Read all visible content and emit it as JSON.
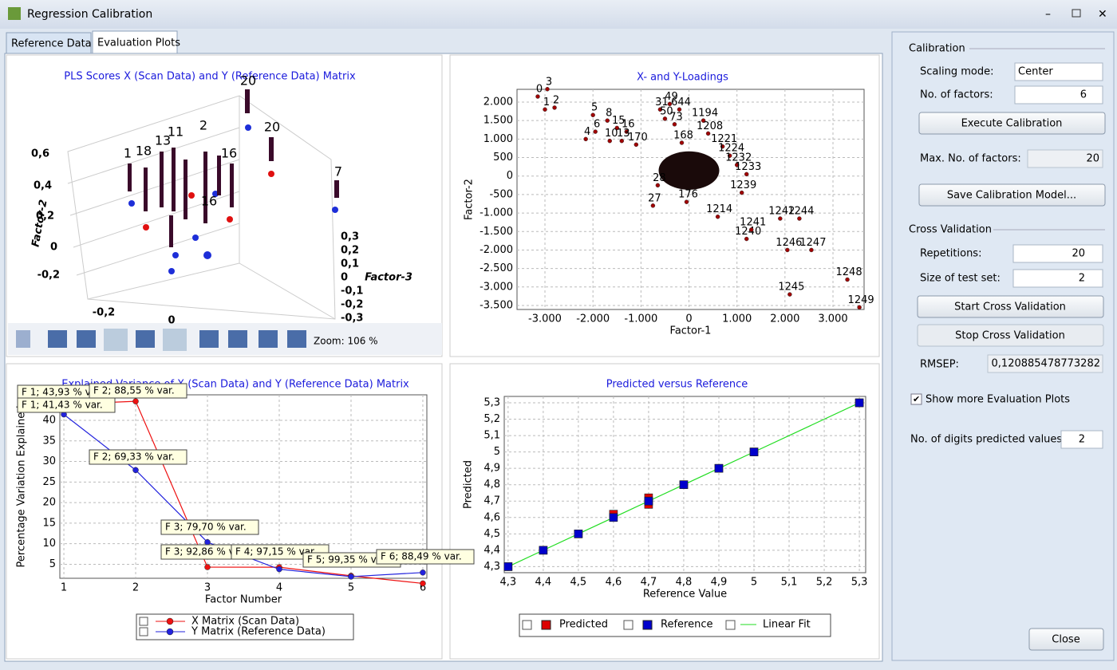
{
  "window": {
    "title": "Regression Calibration"
  },
  "tabs": [
    "Reference Data",
    "Evaluation Plots"
  ],
  "scores": {
    "title": "PLS Scores X (Scan Data) and Y (Reference Data) Matrix",
    "y_axis_label": "Factor-2",
    "z_axis_label": "Factor-3",
    "y_ticks": [
      "0,6",
      "0,4",
      "0,2",
      "0",
      "-0,2"
    ],
    "z_ticks": [
      "0,3",
      "0,2",
      "0,1",
      "0",
      "-0,1",
      "-0,2",
      "-0,3"
    ],
    "x_ticks": [
      "-0,2",
      "0"
    ],
    "point_labels": [
      "20",
      "20",
      "7",
      "11",
      "2",
      "1",
      "18",
      "16",
      "16",
      "13"
    ],
    "zoom": "Zoom: 106 %"
  },
  "loadings": {
    "type": "scatter",
    "title": "X- and Y-Loadings",
    "xlabel": "Factor-1",
    "ylabel": "Factor-2",
    "xlim": [
      -3582,
      3648
    ],
    "ylim": [
      -3608,
      2345
    ],
    "xticks": [
      {
        "value": -3000,
        "label": "-3.000"
      },
      {
        "value": -2000,
        "label": "-2.000"
      },
      {
        "value": -1000,
        "label": "-1.000"
      },
      0,
      {
        "value": 1000,
        "label": "1.000"
      },
      {
        "value": 2000,
        "label": "2.000"
      },
      {
        "value": 3000,
        "label": "3.000"
      }
    ],
    "yticks": [
      {
        "value": 2000,
        "label": "2.000"
      },
      {
        "value": 1500,
        "label": "1.500"
      },
      {
        "value": 1000,
        "label": "1.000"
      },
      500,
      0,
      -500,
      {
        "value": -1000,
        "label": "-1.000"
      },
      {
        "value": -1500,
        "label": "-1.500"
      },
      {
        "value": -2000,
        "label": "-2.000"
      },
      {
        "value": -2500,
        "label": "-2.500"
      },
      {
        "value": -3000,
        "label": "-3.000"
      },
      {
        "value": -3500,
        "label": "-3.500"
      }
    ],
    "labels": [
      "0",
      "3",
      "1",
      "2",
      "5",
      "6",
      "8",
      "4",
      "15",
      "16",
      "10",
      "13",
      "170",
      "49",
      "31",
      "644",
      "50",
      "73",
      "1194",
      "1208",
      "168",
      "1221",
      "1224",
      "1232",
      "1233",
      "1239",
      "176",
      "27",
      "28",
      "1214",
      "1240",
      "1241",
      "1242",
      "1244",
      "1246",
      "1247",
      "1245",
      "1248",
      "1249"
    ],
    "x": [
      -3150,
      -2950,
      -3000,
      -2800,
      -2000,
      -1950,
      -1700,
      -2150,
      -1500,
      -1300,
      -1650,
      -1400,
      -1100,
      -400,
      -600,
      -200,
      -500,
      -300,
      300,
      400,
      -150,
      700,
      850,
      1000,
      1200,
      1100,
      -50,
      -750,
      -650,
      600,
      1200,
      1300,
      1900,
      2300,
      2050,
      2550,
      2100,
      3300,
      3550
    ],
    "y": [
      2150,
      2350,
      1800,
      1850,
      1650,
      1200,
      1500,
      1000,
      1300,
      1200,
      950,
      950,
      850,
      1950,
      1800,
      1800,
      1550,
      1400,
      1500,
      1150,
      900,
      800,
      550,
      300,
      50,
      -450,
      -700,
      -800,
      -250,
      -1100,
      -1700,
      -1450,
      -1150,
      -1150,
      -2000,
      -2000,
      -3200,
      -2800,
      -3550
    ],
    "color": "#a00000"
  },
  "explained": {
    "type": "line",
    "title": "Explained Variance of X (Scan Data) and Y (Reference Data) Matrix",
    "xlabel": "Factor Number",
    "ylabel": "Percentage Variation Explained",
    "x": [
      1,
      2,
      3,
      4,
      5,
      6
    ],
    "xlim": [
      0.944,
      6.056
    ],
    "ylim": [
      1.6,
      46.2
    ],
    "xticks": [
      1,
      2,
      3,
      4,
      5,
      6
    ],
    "yticks": [
      5,
      10,
      15,
      20,
      25,
      30,
      35,
      40
    ],
    "series": [
      {
        "name": "X Matrix (Scan Data)",
        "color": "#ee1111",
        "values": [
          43.93,
          44.62,
          4.31,
          4.29,
          2.2,
          0.35
        ]
      },
      {
        "name": "Y Matrix (Reference Data)",
        "color": "#2222dd",
        "values": [
          41.43,
          27.9,
          10.37,
          3.8,
          2.0,
          2.99
        ]
      }
    ],
    "annotations": [
      "F 1; 43,93 % var.",
      "F 2; 88,55 % var.",
      "F 1; 41,43 % var.",
      "F 2; 69,33 % var.",
      "F 3; 79,70 % var.",
      "F 3; 92,86 % var.",
      "F 4; 97,15 % var.",
      "F 5; 99,35 % var.",
      "F 6; 88,49 % var."
    ]
  },
  "predicted": {
    "type": "scatter",
    "title": "Predicted versus Reference",
    "xlabel": "Reference Value",
    "ylabel": "Predicted",
    "xlim": [
      4.289,
      5.318
    ],
    "ylim": [
      4.263,
      5.339
    ],
    "xticks": [
      {
        "value": 4.3,
        "label": "4,3"
      },
      {
        "value": 4.4,
        "label": "4,4"
      },
      {
        "value": 4.5,
        "label": "4,5"
      },
      {
        "value": 4.6,
        "label": "4,6"
      },
      {
        "value": 4.7,
        "label": "4,7"
      },
      {
        "value": 4.8,
        "label": "4,8"
      },
      {
        "value": 4.9,
        "label": "4,9"
      },
      5,
      {
        "value": 5.1,
        "label": "5,1"
      },
      {
        "value": 5.2,
        "label": "5,2"
      },
      {
        "value": 5.3,
        "label": "5,3"
      }
    ],
    "yticks": [
      {
        "value": 4.3,
        "label": "4,3"
      },
      {
        "value": 4.4,
        "label": "4,4"
      },
      {
        "value": 4.5,
        "label": "4,5"
      },
      {
        "value": 4.6,
        "label": "4,6"
      },
      {
        "value": 4.7,
        "label": "4,7"
      },
      {
        "value": 4.8,
        "label": "4,8"
      },
      {
        "value": 4.9,
        "label": "4,9"
      },
      5,
      {
        "value": 5.1,
        "label": "5,1"
      },
      {
        "value": 5.2,
        "label": "5,2"
      },
      {
        "value": 5.3,
        "label": "5,3"
      }
    ],
    "x": [
      4.3,
      4.4,
      4.5,
      4.6,
      4.7,
      4.7,
      4.8,
      4.9,
      5,
      5.3
    ],
    "series": [
      {
        "name": "Predicted",
        "color": "#dd0000",
        "values": [
          4.3,
          4.4,
          4.5,
          4.62,
          4.72,
          4.68,
          4.8,
          4.9,
          5,
          5.3
        ]
      },
      {
        "name": "Reference",
        "color": "#0000cc",
        "values": [
          4.3,
          4.4,
          4.5,
          4.6,
          4.7,
          4.7,
          4.8,
          4.9,
          5,
          5.3
        ]
      },
      {
        "name": "Linear Fit",
        "color": "#22dd22",
        "values": [
          4.3,
          4.4,
          4.5,
          4.6,
          4.7,
          4.7,
          4.8,
          4.9,
          5,
          5.3
        ]
      }
    ]
  },
  "settings": {
    "calibration_header": "Calibration",
    "scaling_mode_label": "Scaling mode:",
    "scaling_mode": "Center",
    "factors_label": "No. of factors:",
    "factors": 6,
    "execute": "Execute Calibration",
    "max_factors_label": "Max. No. of factors:",
    "max_factors": 20,
    "save": "Save Calibration Model...",
    "cv_header": "Cross Validation",
    "repetitions_label": "Repetitions:",
    "repetitions": 20,
    "test_size_label": "Size of test set:",
    "test_size": 2,
    "start": "Start Cross Validation",
    "stop": "Stop Cross Validation",
    "rmsep_label": "RMSEP:",
    "rmsep": "0,120885478773282",
    "show_more": "Show more Evaluation Plots",
    "digits_label": "No. of digits predicted values:",
    "digits": 2,
    "close": "Close"
  }
}
